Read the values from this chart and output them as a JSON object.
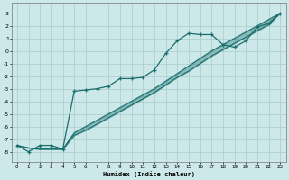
{
  "xlabel": "Humidex (Indice chaleur)",
  "bg_color": "#cce8e8",
  "grid_color": "#aacccc",
  "line_color": "#1a6e6e",
  "xlim": [
    -0.5,
    23.5
  ],
  "ylim": [
    -8.8,
    3.8
  ],
  "xticks": [
    0,
    1,
    2,
    3,
    4,
    5,
    6,
    7,
    8,
    9,
    10,
    11,
    12,
    13,
    14,
    15,
    16,
    17,
    18,
    19,
    20,
    21,
    22,
    23
  ],
  "yticks": [
    -8,
    -7,
    -6,
    -5,
    -4,
    -3,
    -2,
    -1,
    0,
    1,
    2,
    3
  ],
  "curve1_x": [
    0,
    1,
    2,
    3,
    4,
    5,
    6,
    7,
    8,
    9,
    10,
    11,
    12,
    13,
    14,
    15,
    16,
    17,
    18,
    19,
    20,
    21,
    22,
    23
  ],
  "curve1_y": [
    -7.5,
    -8.0,
    -7.5,
    -7.5,
    -7.8,
    -3.2,
    -3.1,
    -3.0,
    -2.8,
    -2.2,
    -2.2,
    -2.1,
    -1.5,
    -0.2,
    0.8,
    1.4,
    1.3,
    1.3,
    0.5,
    0.3,
    0.8,
    1.9,
    2.2,
    3.0
  ],
  "curve2_x": [
    0,
    1,
    2,
    3,
    4,
    5,
    6,
    7,
    8,
    9,
    10,
    11,
    12,
    13,
    14,
    15,
    16,
    17,
    18,
    19,
    20,
    21,
    22,
    23
  ],
  "curve2_y": [
    -7.5,
    -7.7,
    -7.8,
    -7.8,
    -7.8,
    -6.5,
    -6.0,
    -5.5,
    -5.0,
    -4.5,
    -4.0,
    -3.5,
    -3.0,
    -2.4,
    -1.8,
    -1.2,
    -0.6,
    0.0,
    0.5,
    1.0,
    1.5,
    2.0,
    2.5,
    3.0
  ],
  "curve3_x": [
    0,
    1,
    2,
    3,
    4,
    5,
    6,
    7,
    8,
    9,
    10,
    11,
    12,
    13,
    14,
    15,
    16,
    17,
    18,
    19,
    20,
    21,
    22,
    23
  ],
  "curve3_y": [
    -7.5,
    -7.7,
    -7.8,
    -7.8,
    -7.8,
    -6.7,
    -6.3,
    -5.8,
    -5.3,
    -4.8,
    -4.3,
    -3.8,
    -3.3,
    -2.7,
    -2.1,
    -1.6,
    -1.0,
    -0.4,
    0.1,
    0.6,
    1.1,
    1.6,
    2.1,
    3.0
  ]
}
